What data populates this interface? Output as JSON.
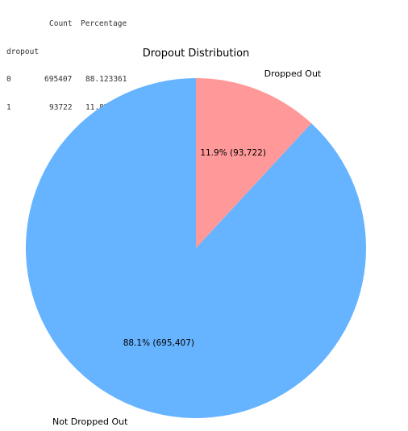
{
  "output_table": {
    "headers": [
      "Count",
      "Percentage"
    ],
    "index_name": "dropout",
    "rows": [
      {
        "index": "0",
        "count": "695407",
        "percentage": "88.123361"
      },
      {
        "index": "1",
        "count": "93722",
        "percentage": "11.876639"
      }
    ]
  },
  "chart_data": {
    "type": "pie",
    "title": "Dropout Distribution",
    "start_angle_deg": 90,
    "direction": "clockwise",
    "slices": [
      {
        "label": "Dropped Out",
        "value": 93722,
        "autopct": "11.9% (93,722)",
        "color": "#ff9999"
      },
      {
        "label": "Not Dropped Out",
        "value": 695407,
        "autopct": "88.1% (695,407)",
        "color": "#66b3ff"
      }
    ]
  }
}
